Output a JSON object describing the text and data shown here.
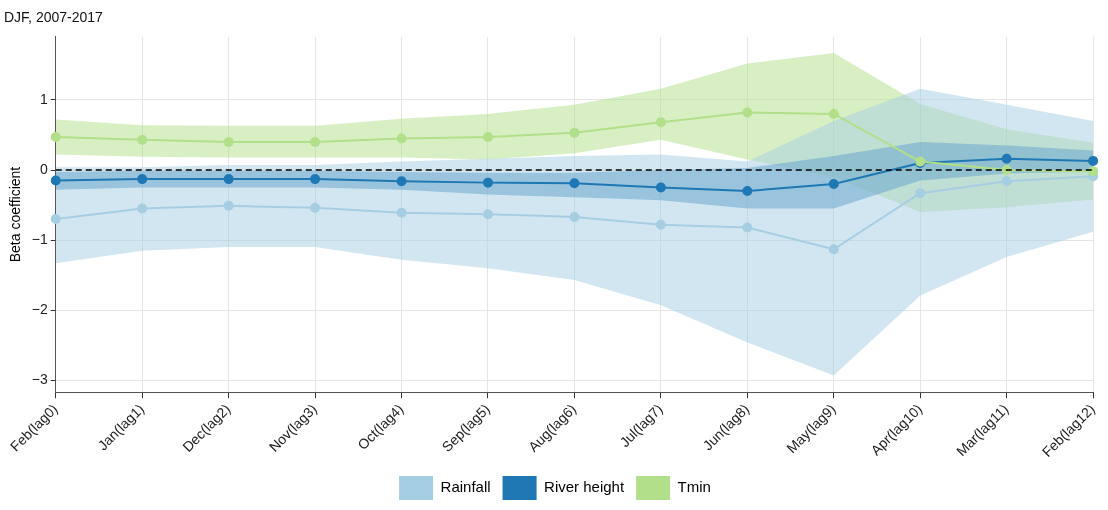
{
  "chart_data": {
    "type": "line",
    "title": "DJF, 2007-2017",
    "ylabel": "Beta coefficient",
    "categories": [
      "Feb(lag0)",
      "Jan(lag1)",
      "Dec(lag2)",
      "Nov(lag3)",
      "Oct(lag4)",
      "Sep(lag5)",
      "Aug(lag6)",
      "Jul(lag7)",
      "Jun(lag8)",
      "May(lag9)",
      "Apr(lag10)",
      "Mar(lag11)",
      "Feb(lag12)"
    ],
    "series": [
      {
        "name": "Rainfall",
        "color": "#a6cee3",
        "values": [
          -0.7,
          -0.55,
          -0.51,
          -0.54,
          -0.61,
          -0.63,
          -0.67,
          -0.78,
          -0.82,
          -1.13,
          -0.33,
          -0.16,
          -0.09
        ],
        "lower": [
          -1.33,
          -1.15,
          -1.1,
          -1.1,
          -1.28,
          -1.4,
          -1.57,
          -1.93,
          -2.46,
          -2.93,
          -1.79,
          -1.24,
          -0.88
        ],
        "upper": [
          0.04,
          0.04,
          0.07,
          0.07,
          0.12,
          0.16,
          0.2,
          0.22,
          0.12,
          0.7,
          1.16,
          0.93,
          0.7
        ]
      },
      {
        "name": "River height",
        "color": "#1f78b4",
        "values": [
          -0.15,
          -0.13,
          -0.13,
          -0.13,
          -0.16,
          -0.18,
          -0.19,
          -0.25,
          -0.3,
          -0.2,
          0.1,
          0.16,
          0.13
        ],
        "lower": [
          -0.28,
          -0.25,
          -0.25,
          -0.25,
          -0.28,
          -0.35,
          -0.39,
          -0.43,
          -0.55,
          -0.55,
          -0.15,
          -0.05,
          -0.02
        ],
        "upper": [
          -0.03,
          -0.01,
          -0.01,
          -0.01,
          -0.03,
          -0.04,
          -0.04,
          0.0,
          0.03,
          0.2,
          0.4,
          0.35,
          0.28
        ]
      },
      {
        "name": "Tmin",
        "color": "#b2df8a",
        "values": [
          0.47,
          0.43,
          0.4,
          0.4,
          0.45,
          0.47,
          0.53,
          0.68,
          0.82,
          0.8,
          0.12,
          0.0,
          -0.02
        ],
        "lower": [
          0.22,
          0.19,
          0.18,
          0.18,
          0.18,
          0.15,
          0.24,
          0.43,
          0.15,
          -0.1,
          -0.6,
          -0.53,
          -0.42
        ],
        "upper": [
          0.72,
          0.64,
          0.63,
          0.63,
          0.73,
          0.8,
          0.93,
          1.16,
          1.52,
          1.67,
          0.94,
          0.58,
          0.39
        ]
      }
    ],
    "ylim": [
      -3.17,
      1.9
    ],
    "yticks": [
      -3,
      -2,
      -1,
      0,
      1
    ],
    "grid": true,
    "legend": "bottom",
    "marker": "circle",
    "line_style": "solid",
    "ref_lines": [
      {
        "axis": "y",
        "value": 0,
        "color": "#000000",
        "line_style": "dashed"
      }
    ]
  }
}
